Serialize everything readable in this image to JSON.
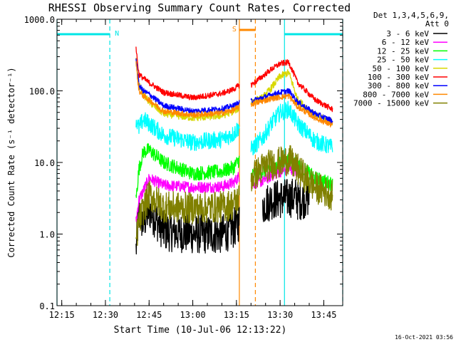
{
  "chart_data": {
    "type": "line",
    "title": "RHESSI Observing Summary Count Rates, Corrected",
    "xlabel": "Start Time (10-Jul-06 12:13:22)",
    "ylabel": "Corrected Count Rate (s⁻¹ detector⁻¹)",
    "yscale": "log",
    "xlim": [
      "12:13:22",
      "13:51:30"
    ],
    "ylim": [
      0.1,
      1000.0
    ],
    "x_tick_labels": [
      "12:15",
      "12:30",
      "12:45",
      "13:00",
      "13:15",
      "13:30",
      "13:45"
    ],
    "y_tick_labels": [
      "0.1",
      "1.0",
      "10.0",
      "100.0",
      "1000.0"
    ],
    "grid": false,
    "legend": {
      "position": "right",
      "header": [
        "Det 1,3,4,5,6,9,",
        "Att 0"
      ],
      "entries": [
        {
          "label": "3 - 6 keV",
          "color": "#000000"
        },
        {
          "label": "6 - 12 keV",
          "color": "#ff00ff"
        },
        {
          "label": "12 - 25 keV",
          "color": "#00ff00"
        },
        {
          "label": "25 - 50 keV",
          "color": "#00ffff"
        },
        {
          "label": "50 - 100 keV",
          "color": "#d8d800"
        },
        {
          "label": "100 - 300 keV",
          "color": "#ff0000"
        },
        {
          "label": "300 - 800 keV",
          "color": "#0000ff"
        },
        {
          "label": "800 - 7000 keV",
          "color": "#ff8800"
        },
        {
          "label": "7000 - 15000 keV",
          "color": "#808000"
        }
      ]
    },
    "annotations": [
      {
        "label": "N",
        "color": "#00e6e6",
        "type": "night",
        "intervals": [
          [
            "12:13:22",
            "12:31:30"
          ],
          [
            "13:31:30",
            "13:51:30"
          ]
        ]
      },
      {
        "label": "S",
        "color": "#ff8800",
        "type": "saa",
        "intervals": [
          [
            "13:16:00",
            "13:21:30"
          ]
        ]
      }
    ],
    "series": [
      {
        "name": "3 - 6 keV",
        "color": "#000000",
        "noise": 0.28,
        "segments": [
          {
            "x": [
              "12:40:30",
              "12:41:30",
              "12:43:00",
              "12:45:00",
              "12:50:00",
              "13:00:00",
              "13:10:00",
              "13:14:00",
              "13:16:00"
            ],
            "y": [
              0.6,
              2.0,
              1.4,
              2.2,
              1.1,
              1.0,
              1.0,
              1.2,
              1.5
            ]
          },
          {
            "x": [
              "13:24:00",
              "13:27:00",
              "13:30:00",
              "13:33:00",
              "13:36:00"
            ],
            "y": [
              2.5,
              3.0,
              3.1,
              3.2,
              3.3
            ]
          },
          {
            "x": [
              "13:36:00",
              "13:40:00"
            ],
            "y": [
              2.9,
              3.3
            ]
          }
        ]
      },
      {
        "name": "6 - 12 keV",
        "color": "#ff00ff",
        "noise": 0.08,
        "segments": [
          {
            "x": [
              "12:40:30",
              "12:41:30",
              "12:43:00",
              "12:45:00",
              "12:50:00",
              "13:00:00",
              "13:10:00",
              "13:14:00",
              "13:16:00"
            ],
            "y": [
              1.5,
              3.0,
              4.0,
              6.0,
              4.8,
              4.5,
              4.6,
              5.2,
              6.5
            ]
          },
          {
            "x": [
              "13:20:00",
              "13:24:00",
              "13:27:00",
              "13:30:00",
              "13:33:00",
              "13:36:00"
            ],
            "y": [
              5.0,
              5.5,
              6.5,
              7.5,
              8.0,
              7.5
            ]
          }
        ]
      },
      {
        "name": "12 - 25 keV",
        "color": "#00ff00",
        "noise": 0.1,
        "segments": [
          {
            "x": [
              "12:40:30",
              "12:41:30",
              "12:43:00",
              "12:45:00",
              "12:50:00",
              "13:00:00",
              "13:10:00",
              "13:14:00",
              "13:16:00"
            ],
            "y": [
              3.0,
              8.0,
              14.0,
              15.0,
              10.0,
              7.0,
              7.5,
              8.5,
              11.0
            ]
          },
          {
            "x": [
              "13:20:00",
              "13:24:00",
              "13:27:00",
              "13:30:00",
              "13:33:00",
              "13:36:00",
              "13:42:00",
              "13:48:00"
            ],
            "y": [
              6.5,
              7.5,
              8.5,
              9.5,
              11.0,
              9.5,
              6.0,
              5.0
            ]
          }
        ]
      },
      {
        "name": "25 - 50 keV",
        "color": "#00ffff",
        "noise": 0.12,
        "segments": [
          {
            "x": [
              "12:40:30",
              "12:41:30",
              "12:43:00",
              "12:45:00",
              "12:50:00",
              "13:00:00",
              "13:10:00",
              "13:14:00",
              "13:16:00"
            ],
            "y": [
              40.0,
              30.0,
              40.0,
              35.0,
              24.0,
              19.0,
              21.0,
              25.0,
              32.0
            ]
          },
          {
            "x": [
              "13:20:00",
              "13:24:00",
              "13:27:00",
              "13:30:00",
              "13:33:00",
              "13:36:00",
              "13:42:00",
              "13:48:00"
            ],
            "y": [
              15.0,
              22.0,
              35.0,
              50.0,
              55.0,
              35.0,
              20.0,
              16.0
            ]
          }
        ]
      },
      {
        "name": "50 - 100 keV",
        "color": "#d8d800",
        "noise": 0.05,
        "segments": [
          {
            "x": [
              "12:40:30",
              "12:41:30",
              "12:43:00",
              "12:45:00",
              "12:50:00",
              "13:00:00",
              "13:10:00",
              "13:14:00",
              "13:16:00"
            ],
            "y": [
              300.0,
              120.0,
              90.0,
              70.0,
              48.0,
              42.0,
              45.0,
              52.0,
              58.0
            ]
          },
          {
            "x": [
              "13:20:00",
              "13:24:00",
              "13:27:00",
              "13:30:00",
              "13:33:00",
              "13:36:00",
              "13:42:00",
              "13:48:00"
            ],
            "y": [
              70.0,
              80.0,
              110.0,
              160.0,
              180.0,
              75.0,
              45.0,
              36.0
            ]
          }
        ]
      },
      {
        "name": "100 - 300 keV",
        "color": "#ff0000",
        "noise": 0.04,
        "segments": [
          {
            "x": [
              "12:40:30",
              "12:41:30",
              "12:43:00",
              "12:45:00",
              "12:50:00",
              "13:00:00",
              "13:10:00",
              "13:14:00",
              "13:16:00"
            ],
            "y": [
              400.0,
              170.0,
              150.0,
              130.0,
              95.0,
              80.0,
              92.0,
              105.0,
              120.0
            ]
          },
          {
            "x": [
              "13:20:00",
              "13:24:00",
              "13:27:00",
              "13:30:00",
              "13:33:00",
              "13:36:00",
              "13:42:00",
              "13:48:00"
            ],
            "y": [
              120.0,
              160.0,
              200.0,
              240.0,
              250.0,
              130.0,
              75.0,
              55.0
            ]
          }
        ]
      },
      {
        "name": "300 - 800 keV",
        "color": "#0000ff",
        "noise": 0.04,
        "segments": [
          {
            "x": [
              "12:40:30",
              "12:41:30",
              "12:43:00",
              "12:45:00",
              "12:50:00",
              "13:00:00",
              "13:10:00",
              "13:14:00",
              "13:16:00"
            ],
            "y": [
              300.0,
              120.0,
              100.0,
              90.0,
              62.0,
              52.0,
              56.0,
              62.0,
              68.0
            ]
          },
          {
            "x": [
              "13:20:00",
              "13:24:00",
              "13:27:00",
              "13:30:00",
              "13:33:00",
              "13:36:00",
              "13:42:00",
              "13:48:00"
            ],
            "y": [
              72.0,
              80.0,
              88.0,
              95.0,
              100.0,
              70.0,
              48.0,
              38.0
            ]
          }
        ]
      },
      {
        "name": "800 - 7000 keV",
        "color": "#ff8800",
        "noise": 0.04,
        "segments": [
          {
            "x": [
              "12:40:30",
              "12:41:30",
              "12:43:00",
              "12:45:00",
              "12:50:00",
              "13:00:00",
              "13:10:00",
              "13:14:00",
              "13:16:00"
            ],
            "y": [
              250.0,
              100.0,
              85.0,
              75.0,
              52.0,
              46.0,
              49.0,
              54.0,
              60.0
            ]
          },
          {
            "x": [
              "13:20:00",
              "13:24:00",
              "13:27:00",
              "13:30:00",
              "13:33:00",
              "13:36:00",
              "13:42:00",
              "13:48:00"
            ],
            "y": [
              65.0,
              72.0,
              78.0,
              82.0,
              85.0,
              60.0,
              42.0,
              33.0
            ]
          }
        ]
      },
      {
        "name": "7000 - 15000 keV",
        "color": "#808000",
        "noise": 0.22,
        "segments": [
          {
            "x": [
              "12:40:30",
              "12:41:30",
              "12:43:00",
              "12:45:00",
              "12:50:00",
              "13:00:00",
              "13:10:00",
              "13:14:00",
              "13:16:00"
            ],
            "y": [
              0.8,
              1.5,
              2.2,
              3.5,
              2.4,
              2.3,
              2.4,
              2.6,
              3.2
            ]
          },
          {
            "x": [
              "13:20:00",
              "13:24:00",
              "13:27:00",
              "13:30:00",
              "13:33:00",
              "13:36:00",
              "13:42:00",
              "13:48:00"
            ],
            "y": [
              6.0,
              8.5,
              9.5,
              10.0,
              11.0,
              8.0,
              4.5,
              3.5
            ]
          }
        ]
      }
    ]
  },
  "footer": {
    "timestamp": "16-Oct-2021 03:56"
  }
}
